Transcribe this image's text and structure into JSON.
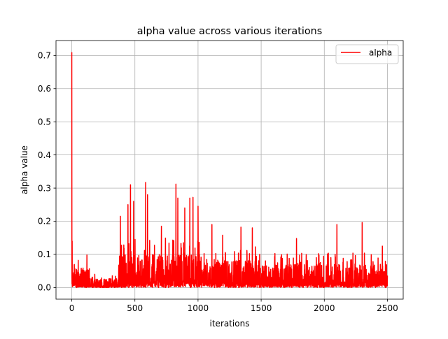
{
  "chart_data": {
    "type": "line",
    "title": "alpha value across various iterations",
    "xlabel": "iterations",
    "ylabel": "alpha value",
    "xlim": [
      -125,
      2625
    ],
    "ylim": [
      -0.035,
      0.745
    ],
    "xticks": [
      0,
      500,
      1000,
      1500,
      2000,
      2500
    ],
    "xtick_labels": [
      "0",
      "500",
      "1000",
      "1500",
      "2000",
      "2500"
    ],
    "yticks": [
      0.0,
      0.1,
      0.2,
      0.3,
      0.4,
      0.5,
      0.6,
      0.7
    ],
    "ytick_labels": [
      "0.0",
      "0.1",
      "0.2",
      "0.3",
      "0.4",
      "0.5",
      "0.6",
      "0.7"
    ],
    "grid": true,
    "legend": {
      "position": "top-right",
      "entries": [
        "alpha"
      ]
    },
    "series": [
      {
        "name": "alpha",
        "color": "#ff0000",
        "x_start": 0,
        "x_end": 2500,
        "notable_points": [
          {
            "x": 0,
            "y": 0.71
          },
          {
            "x": 3,
            "y": 0.14
          },
          {
            "x": 120,
            "y": 0.098
          },
          {
            "x": 385,
            "y": 0.215
          },
          {
            "x": 445,
            "y": 0.25
          },
          {
            "x": 465,
            "y": 0.31
          },
          {
            "x": 490,
            "y": 0.26
          },
          {
            "x": 585,
            "y": 0.317
          },
          {
            "x": 600,
            "y": 0.28
          },
          {
            "x": 710,
            "y": 0.185
          },
          {
            "x": 825,
            "y": 0.312
          },
          {
            "x": 840,
            "y": 0.27
          },
          {
            "x": 895,
            "y": 0.24
          },
          {
            "x": 935,
            "y": 0.27
          },
          {
            "x": 960,
            "y": 0.272
          },
          {
            "x": 1000,
            "y": 0.245
          },
          {
            "x": 1110,
            "y": 0.19
          },
          {
            "x": 1195,
            "y": 0.158
          },
          {
            "x": 1340,
            "y": 0.182
          },
          {
            "x": 1430,
            "y": 0.18
          },
          {
            "x": 1780,
            "y": 0.148
          },
          {
            "x": 2100,
            "y": 0.19
          },
          {
            "x": 2300,
            "y": 0.196
          },
          {
            "x": 2460,
            "y": 0.125
          }
        ]
      }
    ]
  }
}
